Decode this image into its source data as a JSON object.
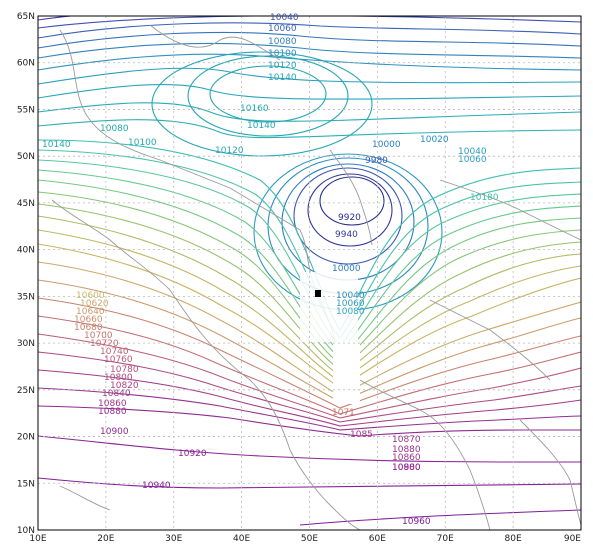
{
  "axes": {
    "lat_labels": [
      "65N",
      "60N",
      "55N",
      "50N",
      "45N",
      "40N",
      "35N",
      "30N",
      "25N",
      "20N",
      "15N",
      "10N"
    ],
    "lon_labels": [
      "10E",
      "20E",
      "30E",
      "40E",
      "50E",
      "60E",
      "70E",
      "80E",
      "90E"
    ]
  },
  "contour_labels": [
    {
      "text": "10040",
      "color": "#3a4fb0"
    },
    {
      "text": "10060",
      "color": "#3a62b8"
    },
    {
      "text": "10080",
      "color": "#3380bd"
    },
    {
      "text": "10100",
      "color": "#2d8fbe"
    },
    {
      "text": "10120",
      "color": "#28a0bd"
    },
    {
      "text": "10140",
      "color": "#20aab8"
    },
    {
      "text": "10160",
      "color": "#22a9b0"
    },
    {
      "text": "10140",
      "color": "#22a9b0"
    },
    {
      "text": "10120",
      "color": "#2aa7ae"
    },
    {
      "text": "10080",
      "color": "#22a9ad"
    },
    {
      "text": "10100",
      "color": "#22a9ad"
    },
    {
      "text": "10140",
      "color": "#28aca8"
    },
    {
      "text": "10000",
      "color": "#2f7cc0"
    },
    {
      "text": "9980",
      "color": "#3b56b5"
    },
    {
      "text": "9920",
      "color": "#2a2d8c"
    },
    {
      "text": "9940",
      "color": "#333a9a"
    },
    {
      "text": "10020",
      "color": "#2a8dc0"
    },
    {
      "text": "10040",
      "color": "#2d9ac0"
    },
    {
      "text": "10060",
      "color": "#2da2be"
    },
    {
      "text": "10180",
      "color": "#3fbfb2"
    },
    {
      "text": "10000",
      "color": "#2f7cc0"
    },
    {
      "text": "10040",
      "color": "#2f8fc0"
    },
    {
      "text": "10060",
      "color": "#3499c0"
    },
    {
      "text": "10080",
      "color": "#3aa6be"
    },
    {
      "text": "10600",
      "color": "#c9b86a"
    },
    {
      "text": "10620",
      "color": "#cda86a"
    },
    {
      "text": "10640",
      "color": "#cc9a6a"
    },
    {
      "text": "10660",
      "color": "#cc8d6a"
    },
    {
      "text": "10680",
      "color": "#c9826c"
    },
    {
      "text": "10700",
      "color": "#c77970"
    },
    {
      "text": "10720",
      "color": "#c36e74"
    },
    {
      "text": "10740",
      "color": "#bf6577"
    },
    {
      "text": "10760",
      "color": "#ba5c7b"
    },
    {
      "text": "10780",
      "color": "#b4527e"
    },
    {
      "text": "10800",
      "color": "#ad4a82"
    },
    {
      "text": "10820",
      "color": "#a84285"
    },
    {
      "text": "10840",
      "color": "#a23b88"
    },
    {
      "text": "10860",
      "color": "#9c358b"
    },
    {
      "text": "10880",
      "color": "#962f8e"
    },
    {
      "text": "10900",
      "color": "#902a91"
    },
    {
      "text": "10920",
      "color": "#8a2595"
    },
    {
      "text": "10940",
      "color": "#842098"
    },
    {
      "text": "10960",
      "color": "#7e1c9c"
    },
    {
      "text": "1071",
      "color": "#c77970"
    },
    {
      "text": "1085",
      "color": "#9c358b"
    },
    {
      "text": "10870",
      "color": "#9c358b"
    },
    {
      "text": "10880",
      "color": "#962f8e"
    },
    {
      "text": "10860",
      "color": "#9c358b"
    },
    {
      "text": "10880",
      "color": "#962f8e"
    },
    {
      "text": "10900",
      "color": "#902a91"
    }
  ],
  "colors": {
    "frame": "#000000",
    "grid": "#b8b8b8",
    "coast": "#9a9a9a",
    "marker": "#000000"
  }
}
